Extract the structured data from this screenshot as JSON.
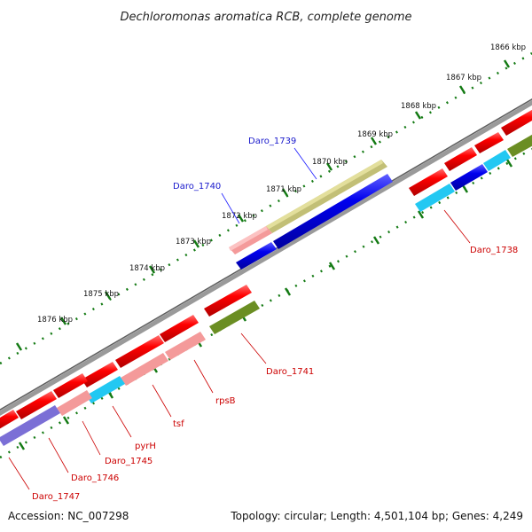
{
  "title": "Dechloromonas aromatica RCB, complete genome",
  "footer": {
    "accession": "Accession: NC_007298",
    "topology": "Topology: circular; Length: 4,501,104 bp; Genes: 4,249"
  },
  "ticks": [
    "1866 kbp",
    "1867 kbp",
    "1868 kbp",
    "1869 kbp",
    "1870 kbp",
    "1871 kbp",
    "1872 kbp",
    "1873 kbp",
    "1874 kbp",
    "1875 kbp",
    "1876 kbp"
  ],
  "labels": {
    "daro_1739": "Daro_1739",
    "daro_1740": "Daro_1740",
    "daro_1738": "Daro_1738",
    "daro_1741": "Daro_1741",
    "rpsB": "rpsB",
    "tsf": "tsf",
    "pyrH": "pyrH",
    "daro_1745": "Daro_1745",
    "daro_1746": "Daro_1746",
    "daro_1747": "Daro_1747"
  },
  "colors": {
    "red": "#ff0000",
    "pink": "#f08080",
    "blue": "#0000ee",
    "cyan": "#00c0ff",
    "olive": "#6b8e23",
    "khaki": "#bdb76b",
    "purple": "#6a5acd",
    "backbone": "#808080",
    "tick_green": "#006400",
    "label_blue": "#0000cc",
    "label_red": "#cc0000"
  },
  "genes": [
    {
      "id": "Daro_1738",
      "strand": "minus",
      "color": "cyan"
    },
    {
      "id": "Daro_1739",
      "strand": "plus",
      "color": "khaki"
    },
    {
      "id": "Daro_1740",
      "strand": "plus",
      "color": "pink"
    },
    {
      "id": "Daro_1741",
      "strand": "minus",
      "color": "olive"
    },
    {
      "id": "rpsB",
      "strand": "minus",
      "color": "pink"
    },
    {
      "id": "tsf",
      "strand": "minus",
      "color": "pink"
    },
    {
      "id": "pyrH",
      "strand": "minus",
      "color": "cyan"
    },
    {
      "id": "Daro_1745",
      "strand": "minus",
      "color": "pink"
    },
    {
      "id": "Daro_1746",
      "strand": "minus",
      "color": "pink"
    },
    {
      "id": "Daro_1747",
      "strand": "minus",
      "color": "purple"
    }
  ]
}
